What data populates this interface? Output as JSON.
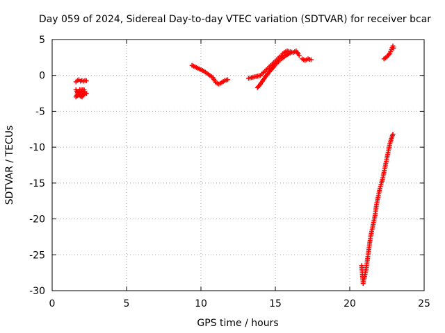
{
  "chart_data": {
    "type": "scatter",
    "title": "Day 059 of 2024, Sidereal Day-to-day VTEC variation (SDTVAR) for receiver bcar",
    "xlabel": "GPS time / hours",
    "ylabel": "SDTVAR / TECUs",
    "xlim": [
      0,
      25
    ],
    "ylim": [
      -30,
      5
    ],
    "xticks": [
      0,
      5,
      10,
      15,
      20,
      25
    ],
    "xtick_labels": [
      "0",
      "5",
      "10",
      "15",
      "20",
      "25"
    ],
    "yticks": [
      5,
      0,
      -5,
      -10,
      -15,
      -20,
      -25,
      -30
    ],
    "ytick_labels": [
      "5",
      "0",
      "-5",
      "-10",
      "-15",
      "-20",
      "-25",
      "-30"
    ],
    "grid": true,
    "marker": "plus",
    "color": "#ff0000",
    "segments": [
      [
        [
          1.6,
          -0.9
        ],
        [
          1.7,
          -0.7
        ],
        [
          1.8,
          -0.6
        ],
        [
          1.9,
          -0.8
        ],
        [
          2.0,
          -0.7
        ],
        [
          2.1,
          -0.8
        ],
        [
          2.2,
          -0.7
        ],
        [
          2.3,
          -0.75
        ]
      ],
      [
        [
          1.6,
          -2.0
        ],
        [
          1.7,
          -2.4
        ],
        [
          1.8,
          -2.6
        ],
        [
          1.9,
          -2.9
        ],
        [
          2.0,
          -3.0
        ],
        [
          2.1,
          -2.7
        ],
        [
          2.2,
          -2.3
        ],
        [
          2.3,
          -2.5
        ],
        [
          1.65,
          -2.8
        ],
        [
          1.75,
          -2.2
        ],
        [
          1.85,
          -2.0
        ],
        [
          2.15,
          -2.0
        ],
        [
          1.6,
          -3.0
        ]
      ],
      [
        [
          9.4,
          1.4
        ],
        [
          9.6,
          1.2
        ],
        [
          9.8,
          1.0
        ],
        [
          10.0,
          0.8
        ],
        [
          10.2,
          0.6
        ],
        [
          10.4,
          0.3
        ],
        [
          10.6,
          0.0
        ],
        [
          10.8,
          -0.3
        ],
        [
          11.0,
          -1.0
        ],
        [
          11.2,
          -1.2
        ],
        [
          11.4,
          -1.0
        ],
        [
          11.6,
          -0.7
        ],
        [
          11.8,
          -0.6
        ]
      ],
      [
        [
          13.2,
          -0.4
        ],
        [
          13.4,
          -0.3
        ],
        [
          13.6,
          -0.2
        ],
        [
          13.8,
          -0.1
        ],
        [
          14.0,
          0.0
        ],
        [
          14.2,
          0.4
        ],
        [
          14.4,
          0.8
        ],
        [
          14.6,
          1.2
        ],
        [
          14.8,
          1.6
        ],
        [
          15.0,
          2.0
        ],
        [
          15.2,
          2.4
        ],
        [
          15.4,
          2.8
        ],
        [
          15.6,
          3.2
        ],
        [
          15.8,
          3.4
        ],
        [
          16.0,
          3.3
        ],
        [
          16.2,
          3.2
        ],
        [
          16.4,
          3.4
        ],
        [
          16.6,
          2.8
        ]
      ],
      [
        [
          13.8,
          -1.7
        ],
        [
          14.0,
          -1.2
        ],
        [
          14.2,
          -0.6
        ],
        [
          14.4,
          0.0
        ],
        [
          14.6,
          0.5
        ],
        [
          14.8,
          1.0
        ],
        [
          15.0,
          1.5
        ],
        [
          15.2,
          1.9
        ],
        [
          15.4,
          2.3
        ],
        [
          15.6,
          2.6
        ],
        [
          15.8,
          2.9
        ],
        [
          16.0,
          3.1
        ]
      ],
      [
        [
          16.8,
          2.3
        ],
        [
          17.0,
          2.1
        ],
        [
          17.2,
          2.3
        ],
        [
          17.4,
          2.2
        ]
      ],
      [
        [
          22.3,
          2.3
        ],
        [
          22.5,
          2.6
        ],
        [
          22.7,
          3.1
        ],
        [
          22.8,
          3.6
        ],
        [
          22.9,
          4.1
        ],
        [
          22.95,
          3.8
        ]
      ],
      [
        [
          20.8,
          -26.5
        ],
        [
          20.9,
          -29.0
        ],
        [
          21.0,
          -28.0
        ],
        [
          21.1,
          -27.0
        ],
        [
          21.2,
          -25.5
        ],
        [
          21.3,
          -24.0
        ],
        [
          21.4,
          -22.5
        ],
        [
          21.5,
          -21.5
        ],
        [
          21.6,
          -20.5
        ],
        [
          21.7,
          -19.5
        ],
        [
          21.8,
          -18.0
        ],
        [
          21.9,
          -17.0
        ],
        [
          22.0,
          -16.0
        ],
        [
          22.1,
          -15.2
        ],
        [
          22.2,
          -14.5
        ],
        [
          22.3,
          -13.5
        ],
        [
          22.4,
          -12.5
        ],
        [
          22.5,
          -11.5
        ],
        [
          22.6,
          -10.5
        ],
        [
          22.7,
          -9.5
        ],
        [
          22.8,
          -8.8
        ],
        [
          22.9,
          -8.2
        ]
      ]
    ]
  }
}
